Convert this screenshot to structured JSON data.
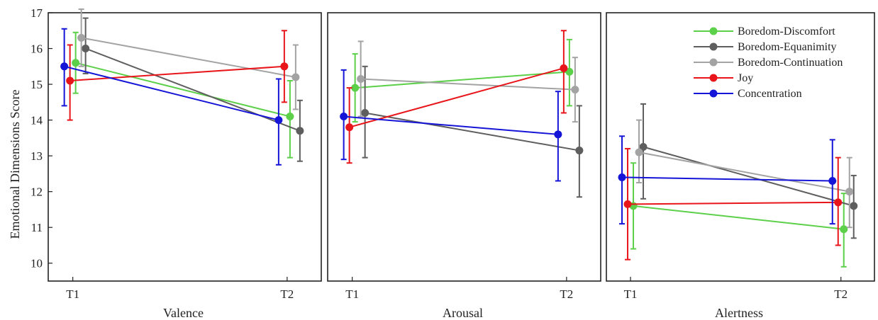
{
  "chart_data": [
    {
      "type": "line",
      "panel": "valence",
      "xlabel": "Valence",
      "ylabel": "Emotional Dimensions Score",
      "categories": [
        "T1",
        "T2"
      ],
      "ylim": [
        9.5,
        17
      ],
      "yticks": [
        10,
        11,
        12,
        13,
        14,
        15,
        16,
        17
      ],
      "grid": false,
      "series": [
        {
          "name": "Boredom-Discomfort",
          "values": [
            15.6,
            14.1
          ],
          "err_low": [
            14.75,
            12.95
          ],
          "err_high": [
            16.45,
            15.1
          ]
        },
        {
          "name": "Boredom-Equanimity",
          "values": [
            16.0,
            13.7
          ],
          "err_low": [
            15.3,
            12.85
          ],
          "err_high": [
            16.85,
            14.55
          ]
        },
        {
          "name": "Boredom-Continuation",
          "values": [
            16.3,
            15.2
          ],
          "err_low": [
            15.5,
            14.3
          ],
          "err_high": [
            17.1,
            16.1
          ]
        },
        {
          "name": "Joy",
          "values": [
            15.1,
            15.5
          ],
          "err_low": [
            14.0,
            14.5
          ],
          "err_high": [
            16.1,
            16.5
          ]
        },
        {
          "name": "Concentration",
          "values": [
            15.5,
            14.0
          ],
          "err_low": [
            14.4,
            12.75
          ],
          "err_high": [
            16.55,
            15.15
          ]
        }
      ]
    },
    {
      "type": "line",
      "panel": "arousal",
      "xlabel": "Arousal",
      "ylabel": "",
      "categories": [
        "T1",
        "T2"
      ],
      "ylim": [
        9.5,
        17
      ],
      "grid": false,
      "series": [
        {
          "name": "Boredom-Discomfort",
          "values": [
            14.9,
            15.35
          ],
          "err_low": [
            13.95,
            14.4
          ],
          "err_high": [
            15.85,
            16.25
          ]
        },
        {
          "name": "Boredom-Equanimity",
          "values": [
            14.2,
            13.15
          ],
          "err_low": [
            12.95,
            11.85
          ],
          "err_high": [
            15.5,
            14.4
          ]
        },
        {
          "name": "Boredom-Continuation",
          "values": [
            15.15,
            14.85
          ],
          "err_low": [
            14.1,
            13.95
          ],
          "err_high": [
            16.2,
            15.75
          ]
        },
        {
          "name": "Joy",
          "values": [
            13.8,
            15.45
          ],
          "err_low": [
            12.8,
            14.2
          ],
          "err_high": [
            14.9,
            16.5
          ]
        },
        {
          "name": "Concentration",
          "values": [
            14.1,
            13.6
          ],
          "err_low": [
            12.9,
            12.3
          ],
          "err_high": [
            15.4,
            14.8
          ]
        }
      ]
    },
    {
      "type": "line",
      "panel": "alertness",
      "xlabel": "Alertness",
      "ylabel": "",
      "categories": [
        "T1",
        "T2"
      ],
      "ylim": [
        9.5,
        17
      ],
      "grid": false,
      "legend_position": "top-right",
      "series": [
        {
          "name": "Boredom-Discomfort",
          "values": [
            11.6,
            10.95
          ],
          "err_low": [
            10.4,
            9.9
          ],
          "err_high": [
            12.8,
            11.95
          ]
        },
        {
          "name": "Boredom-Equanimity",
          "values": [
            13.25,
            11.6
          ],
          "err_low": [
            11.8,
            10.7
          ],
          "err_high": [
            14.45,
            12.45
          ]
        },
        {
          "name": "Boredom-Continuation",
          "values": [
            13.1,
            12.0
          ],
          "err_low": [
            12.25,
            11.0
          ],
          "err_high": [
            14.0,
            12.95
          ]
        },
        {
          "name": "Joy",
          "values": [
            11.65,
            11.7
          ],
          "err_low": [
            10.1,
            10.5
          ],
          "err_high": [
            13.2,
            12.95
          ]
        },
        {
          "name": "Concentration",
          "values": [
            12.4,
            12.3
          ],
          "err_low": [
            11.1,
            11.1
          ],
          "err_high": [
            13.55,
            13.45
          ]
        }
      ]
    }
  ],
  "legend": {
    "items": [
      {
        "name": "Boredom-Discomfort",
        "color": "#5dd04a"
      },
      {
        "name": "Boredom-Equanimity",
        "color": "#5e5e5e"
      },
      {
        "name": "Boredom-Continuation",
        "color": "#a3a3a3"
      },
      {
        "name": "Joy",
        "color": "#e8161b"
      },
      {
        "name": "Concentration",
        "color": "#1515d8"
      }
    ]
  }
}
